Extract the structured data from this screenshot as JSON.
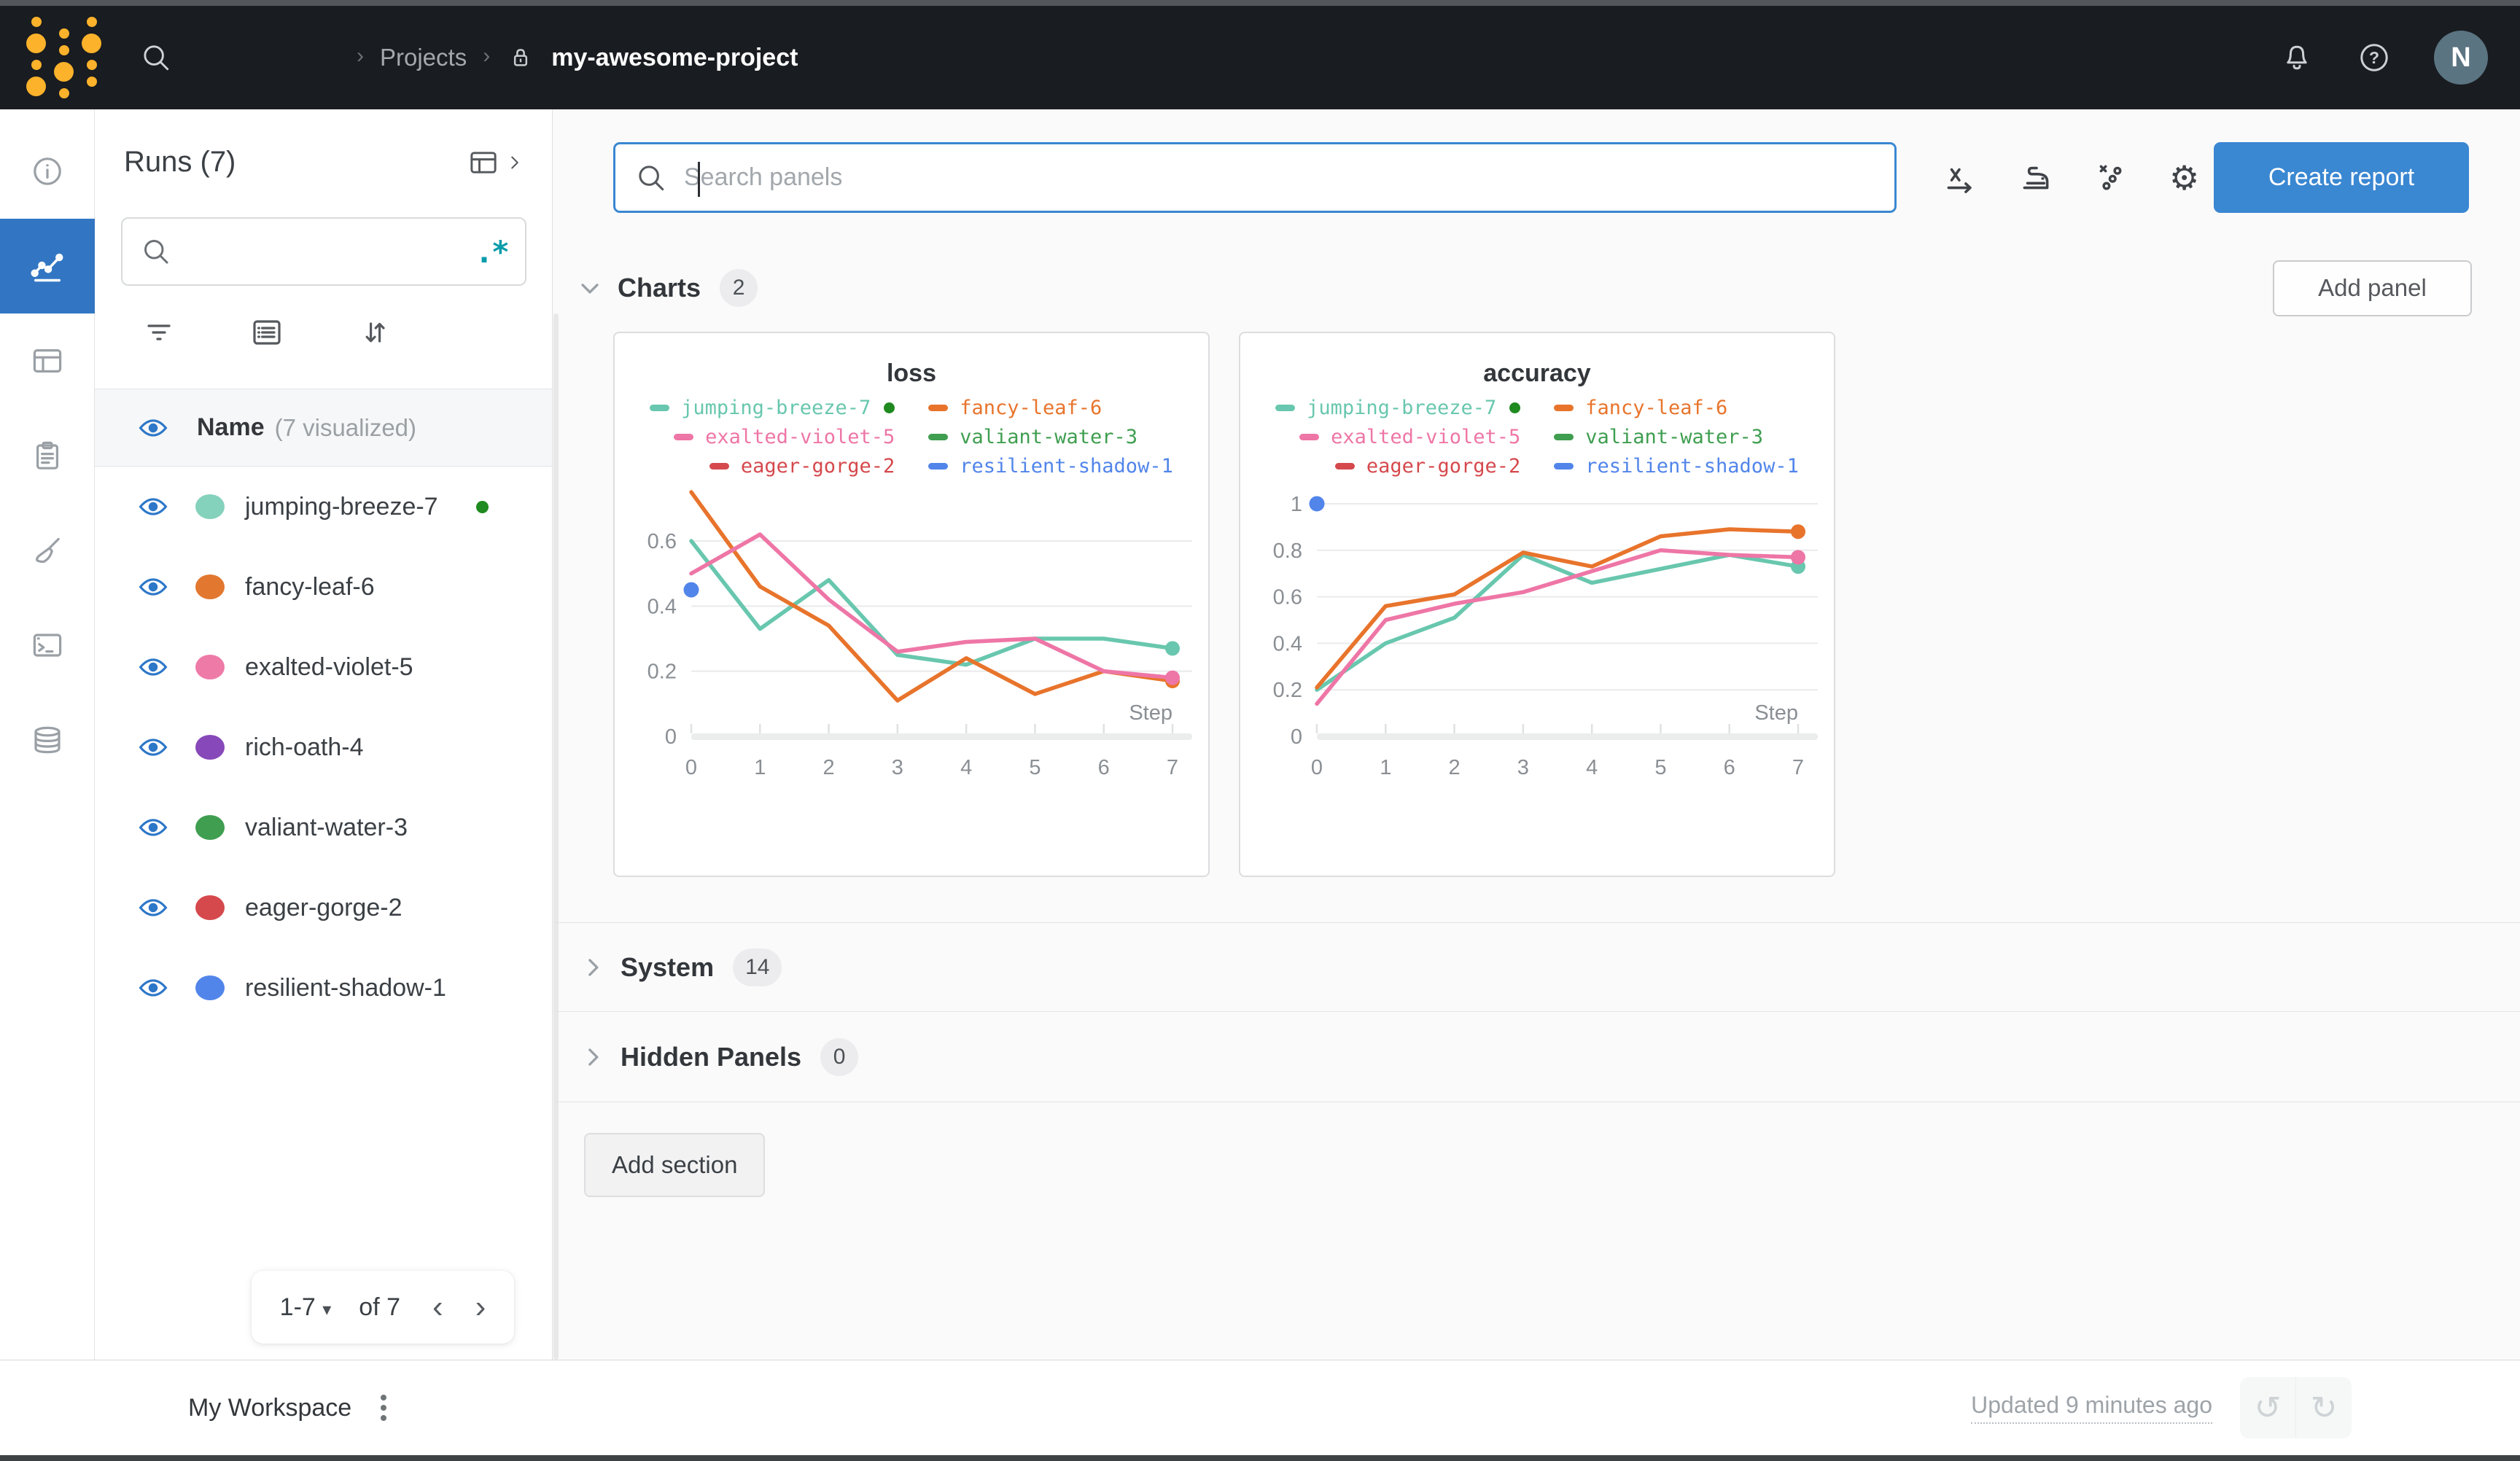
{
  "topnav": {
    "breadcrumb": {
      "sep": "›",
      "projects": "Projects",
      "project": "my-awesome-project"
    },
    "avatar": "N"
  },
  "runs_panel": {
    "title": "Runs (7)",
    "search_placeholder": "",
    "regex_icon": ".*",
    "header": {
      "name": "Name",
      "visualized": "(7 visualized)"
    },
    "runs": [
      {
        "name": "jumping-breeze-7",
        "color": "#84d1bc",
        "running": true
      },
      {
        "name": "fancy-leaf-6",
        "color": "#e2772f",
        "running": false
      },
      {
        "name": "exalted-violet-5",
        "color": "#ee7aa8",
        "running": false
      },
      {
        "name": "rich-oath-4",
        "color": "#8748b9",
        "running": false
      },
      {
        "name": "valiant-water-3",
        "color": "#3f9e50",
        "running": false
      },
      {
        "name": "eager-gorge-2",
        "color": "#d5494d",
        "running": false
      },
      {
        "name": "resilient-shadow-1",
        "color": "#5185ea",
        "running": false
      }
    ],
    "pagination": {
      "range": "1-7",
      "tri": "▾",
      "of": "of 7",
      "prev": "‹",
      "next": "›"
    }
  },
  "main": {
    "search_placeholder": "Search panels",
    "create_report": "Create report",
    "add_panel": "Add panel",
    "add_section": "Add section",
    "sections": [
      {
        "label": "Charts",
        "count": "2",
        "expanded": true
      },
      {
        "label": "System",
        "count": "14",
        "expanded": false
      },
      {
        "label": "Hidden Panels",
        "count": "0",
        "expanded": false
      }
    ]
  },
  "footer": {
    "workspace": "My Workspace",
    "updated": "Updated 9 minutes ago",
    "undo_icon": "↺",
    "redo_icon": "↻"
  },
  "icons": {
    "gear": "⚙"
  },
  "accent_colors": {
    "primary_blue": "#3a87d2",
    "nav_bg": "#191c20",
    "running_green": "#1f8a1f",
    "regex_teal": "#0a9cab"
  },
  "chart_data": [
    {
      "type": "line",
      "title": "loss",
      "xlabel": "Step",
      "x": [
        0,
        1,
        2,
        3,
        4,
        5,
        6,
        7
      ],
      "ylim": [
        0,
        0.75
      ],
      "yticks": [
        0,
        0.2,
        0.4,
        0.6
      ],
      "grid": "horizontal",
      "legend_position": "top-center",
      "series": [
        {
          "name": "jumping-breeze-7",
          "color": "#68c7ae",
          "running": true,
          "end_marker": true,
          "values": [
            0.6,
            0.33,
            0.48,
            0.25,
            0.22,
            0.3,
            0.3,
            0.27
          ]
        },
        {
          "name": "fancy-leaf-6",
          "color": "#e8742c",
          "end_marker": true,
          "values": [
            0.75,
            0.46,
            0.34,
            0.11,
            0.24,
            0.13,
            0.2,
            0.17
          ]
        },
        {
          "name": "exalted-violet-5",
          "color": "#ee76a6",
          "end_marker": true,
          "values": [
            0.5,
            0.62,
            0.42,
            0.26,
            0.29,
            0.3,
            0.2,
            0.18
          ]
        },
        {
          "name": "valiant-water-3",
          "color": "#3f9e50",
          "values": []
        },
        {
          "name": "eager-gorge-2",
          "color": "#d5494d",
          "values": []
        },
        {
          "name": "resilient-shadow-1",
          "color": "#5185ea",
          "point_only": true,
          "values": [
            0.45
          ]
        }
      ]
    },
    {
      "type": "line",
      "title": "accuracy",
      "xlabel": "Step",
      "x": [
        0,
        1,
        2,
        3,
        4,
        5,
        6,
        7
      ],
      "ylim": [
        0,
        1.05
      ],
      "yticks": [
        0,
        0.2,
        0.4,
        0.6,
        0.8,
        1
      ],
      "grid": "horizontal",
      "legend_position": "top-center",
      "series": [
        {
          "name": "jumping-breeze-7",
          "color": "#68c7ae",
          "running": true,
          "end_marker": true,
          "values": [
            0.2,
            0.4,
            0.51,
            0.78,
            0.66,
            0.72,
            0.78,
            0.73
          ]
        },
        {
          "name": "fancy-leaf-6",
          "color": "#e8742c",
          "end_marker": true,
          "values": [
            0.21,
            0.56,
            0.61,
            0.79,
            0.73,
            0.86,
            0.89,
            0.88
          ]
        },
        {
          "name": "exalted-violet-5",
          "color": "#ee76a6",
          "end_marker": true,
          "values": [
            0.14,
            0.5,
            0.57,
            0.62,
            0.71,
            0.8,
            0.78,
            0.77
          ]
        },
        {
          "name": "valiant-water-3",
          "color": "#3f9e50",
          "values": []
        },
        {
          "name": "eager-gorge-2",
          "color": "#d5494d",
          "values": []
        },
        {
          "name": "resilient-shadow-1",
          "color": "#5185ea",
          "point_only": true,
          "values": [
            1.0
          ]
        }
      ]
    }
  ]
}
